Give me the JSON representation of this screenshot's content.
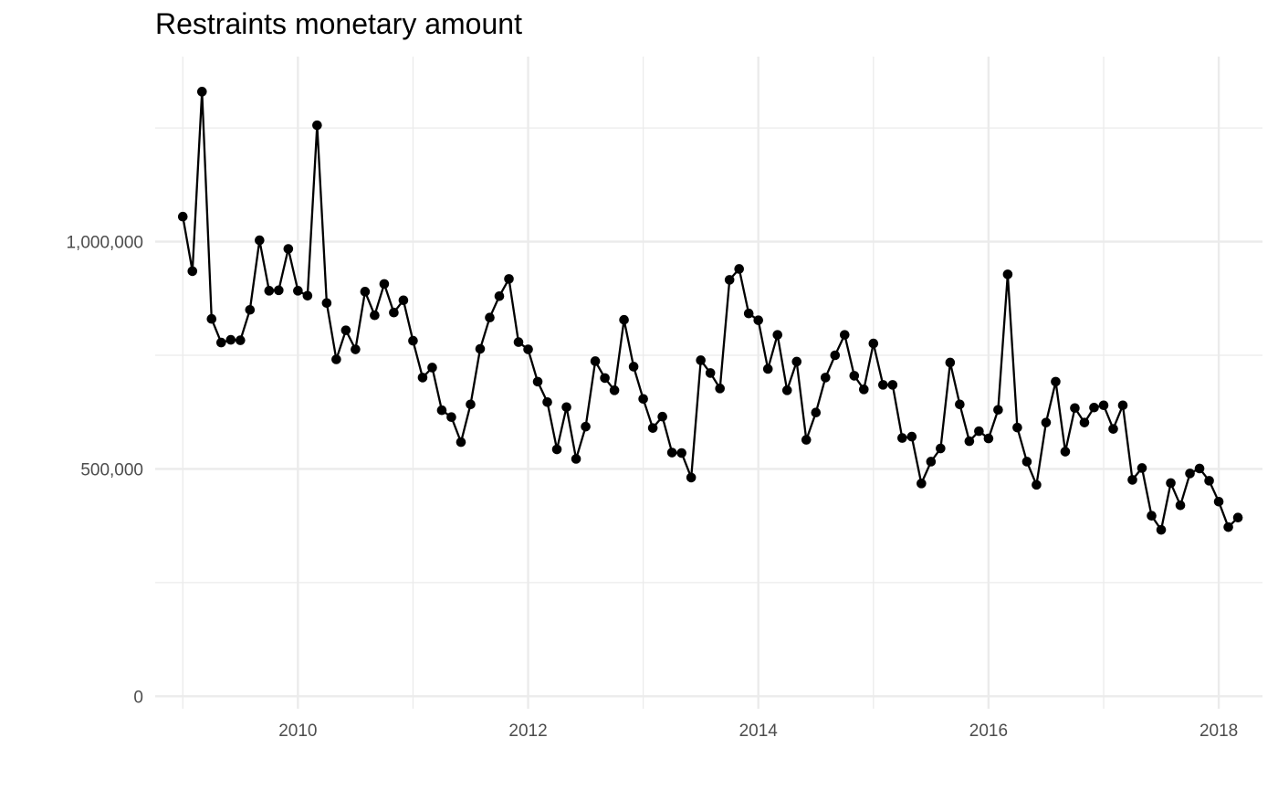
{
  "chart_data": {
    "type": "line",
    "title": "Restraints monetary amount",
    "xlabel": "",
    "ylabel": "",
    "xlim": [
      2008.76,
      2018.38
    ],
    "ylim": [
      -27500,
      1407000
    ],
    "grid": true,
    "legend": "none",
    "line_color": "#000000",
    "x_ticks": [
      {
        "value": 2010,
        "label": "2010"
      },
      {
        "value": 2012,
        "label": "2012"
      },
      {
        "value": 2014,
        "label": "2014"
      },
      {
        "value": 2016,
        "label": "2016"
      },
      {
        "value": 2018,
        "label": "2018"
      }
    ],
    "y_ticks": [
      {
        "value": 0,
        "label": "0"
      },
      {
        "value": 500000,
        "label": "500,000"
      },
      {
        "value": 1000000,
        "label": "1,000,000"
      }
    ],
    "minor_x": [
      2009,
      2011,
      2013,
      2015,
      2017
    ],
    "minor_y": [
      250000,
      750000,
      1250000
    ],
    "start_year": 2009,
    "values": [
      1055000,
      935000,
      1330000,
      830000,
      778000,
      784000,
      783000,
      850000,
      1003000,
      892000,
      893000,
      984000,
      892000,
      881000,
      1256000,
      865000,
      741000,
      805000,
      763000,
      890000,
      838000,
      907000,
      844000,
      871000,
      782000,
      701000,
      723000,
      629000,
      614000,
      559000,
      642000,
      764000,
      833000,
      880000,
      918000,
      779000,
      763000,
      692000,
      647000,
      543000,
      636000,
      522000,
      593000,
      737000,
      700000,
      673000,
      828000,
      725000,
      654000,
      590000,
      615000,
      536000,
      535000,
      481000,
      739000,
      711000,
      677000,
      916000,
      940000,
      842000,
      827000,
      720000,
      795000,
      673000,
      736000,
      564000,
      624000,
      701000,
      750000,
      795000,
      705000,
      675000,
      776000,
      685000,
      685000,
      568000,
      571000,
      468000,
      516000,
      545000,
      734000,
      642000,
      561000,
      583000,
      567000,
      630000,
      928000,
      591000,
      516000,
      465000,
      602000,
      692000,
      538000,
      634000,
      602000,
      635000,
      640000,
      588000,
      640000,
      476000,
      502000,
      397000,
      366000,
      469000,
      420000,
      490000,
      501000,
      474000,
      428000,
      372000,
      393000
    ]
  }
}
